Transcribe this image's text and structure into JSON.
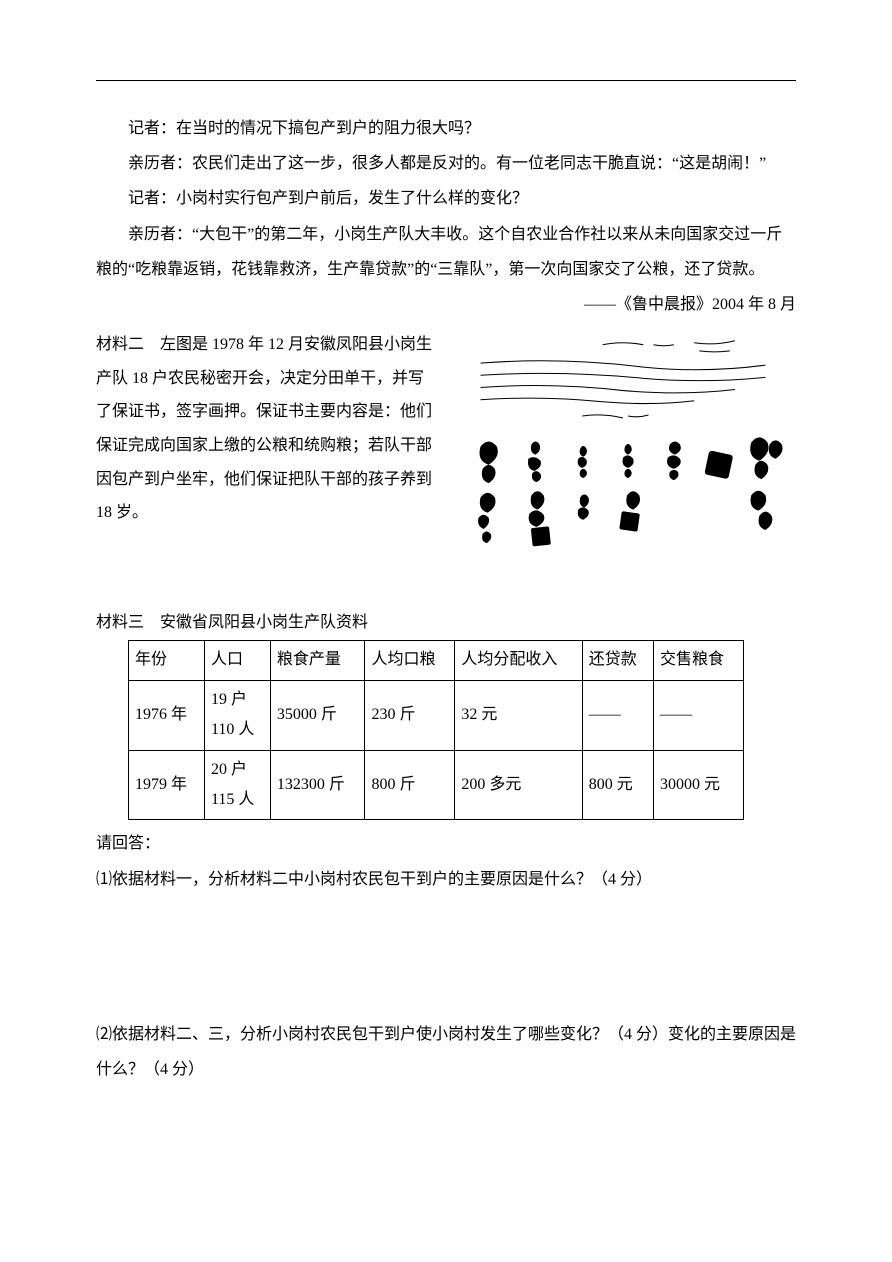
{
  "dialogue": {
    "d1": "记者：在当时的情况下搞包产到户的阻力很大吗？",
    "d2": "亲历者：农民们走出了这一步，很多人都是反对的。有一位老同志干脆直说：“这是胡闹！”",
    "d3": "记者：小岗村实行包产到户前后，发生了什么样的变化？",
    "d4": "亲历者：“大包干”的第二年，小岗生产队大丰收。这个自农业合作社以来从未向国家交过一斤粮的“吃粮靠返销，花钱靠救济，生产靠贷款”的“三靠队”，第一次向国家交了公粮，还了贷款。",
    "source": "——《鲁中晨报》2004 年 8 月"
  },
  "material2": {
    "text": "材料二　左图是 1978 年 12 月安徽凤阳县小岗生产队 18 户农民秘密开会，决定分田单干，并写了保证书，签字画押。保证书主要内容是：他们保证完成向国家上缴的公粮和统购粮；若队干部因包产到户坐牢，他们保证把队干部的孩子养到 18 岁。"
  },
  "material3": {
    "title": "材料三　安徽省凤阳县小岗生产队资料",
    "columns": [
      "年份",
      "人口",
      "粮食产量",
      "人均口粮",
      "人均分配收入",
      "还贷款",
      "交售粮食"
    ],
    "rows": [
      [
        "1976 年",
        "19 户\n110 人",
        "35000 斤",
        "230 斤",
        "32 元",
        "——",
        "——"
      ],
      [
        "1979 年",
        "20 户\n115 人",
        "132300 斤",
        "800 斤",
        "200 多元",
        "800 元",
        "30000 元"
      ]
    ]
  },
  "questions": {
    "intro": "请回答：",
    "q1": "⑴依据材料一，分析材料二中小岗村农民包干到户的主要原因是什么？（4 分）",
    "q2": "⑵依据材料二、三，分析小岗村农民包干到户使小岗村发生了哪些变化？（4 分）变化的主要原因是什么？（4 分）"
  },
  "colors": {
    "text": "#000000",
    "background": "#ffffff",
    "border": "#000000"
  },
  "fontsize_pt": 12
}
